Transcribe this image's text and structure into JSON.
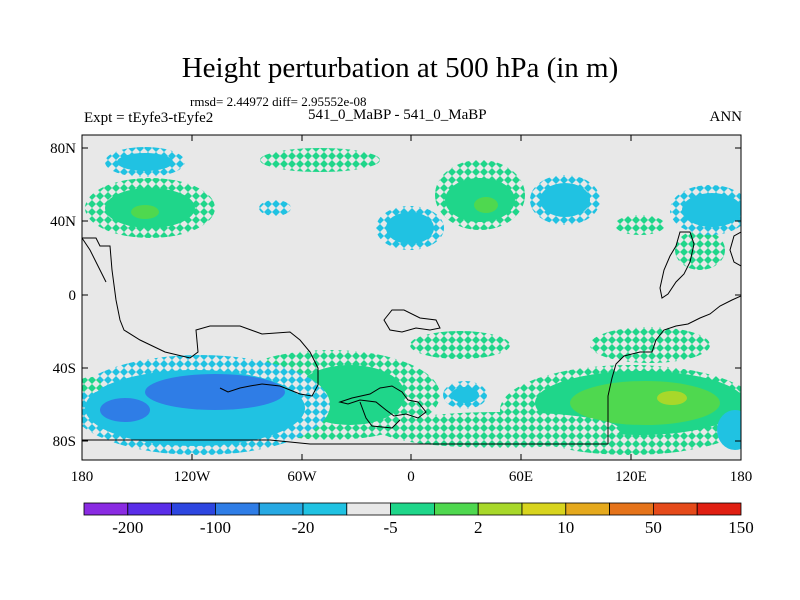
{
  "header": {
    "title": "Height perturbation at 500 hPa (in m)",
    "stats": "rmsd= 2.44972 diff= 2.95552e-08",
    "left_label": "Expt = tEyfe3-tEyfe2",
    "center_label": "541_0_MaBP - 541_0_MaBP",
    "right_label": "ANN"
  },
  "axes": {
    "lat_ticks": [
      "80N",
      "40N",
      "0",
      "40S",
      "80S"
    ],
    "lon_ticks": [
      "180",
      "120W",
      "60W",
      "0",
      "60E",
      "120E",
      "180"
    ]
  },
  "colorbar": {
    "colors": [
      "#8a2be2",
      "#5a2de8",
      "#2d46e0",
      "#2f7de6",
      "#27a9e3",
      "#20c2e2",
      "#e8e8e8",
      "#1fd68a",
      "#4fd84f",
      "#a8d82a",
      "#d8d41e",
      "#e5a91d",
      "#e5731a",
      "#e54a1a",
      "#e01f12"
    ],
    "labels": [
      "-200",
      "-100",
      "-20",
      "-5",
      "2",
      "10",
      "50",
      "150"
    ]
  },
  "colors": {
    "background": "#e8e8e8",
    "negative_main": "#20c2e2",
    "negative_strong": "#2f7de6",
    "positive_main": "#1fd68a",
    "positive_strong": "#4fd84f",
    "positive_peak": "#a8d82a"
  }
}
